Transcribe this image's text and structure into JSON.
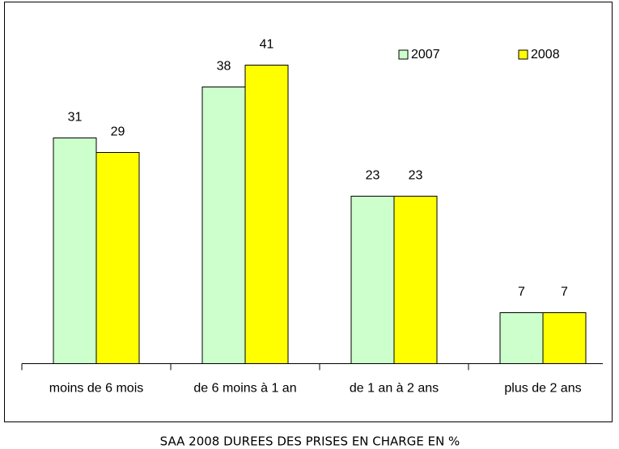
{
  "chart_data": {
    "type": "bar",
    "title": "SAA 2008 DUREES DES PRISES EN CHARGE EN %",
    "categories": [
      "moins de 6 mois",
      "de 6 moins à 1 an",
      "de 1 an à 2 ans",
      "plus de 2 ans"
    ],
    "series": [
      {
        "name": "2007",
        "color": "#ccffcc",
        "values": [
          31,
          38,
          23,
          7
        ]
      },
      {
        "name": "2008",
        "color": "#ffff00",
        "values": [
          29,
          41,
          23,
          7
        ]
      }
    ],
    "legend": "top-right"
  }
}
